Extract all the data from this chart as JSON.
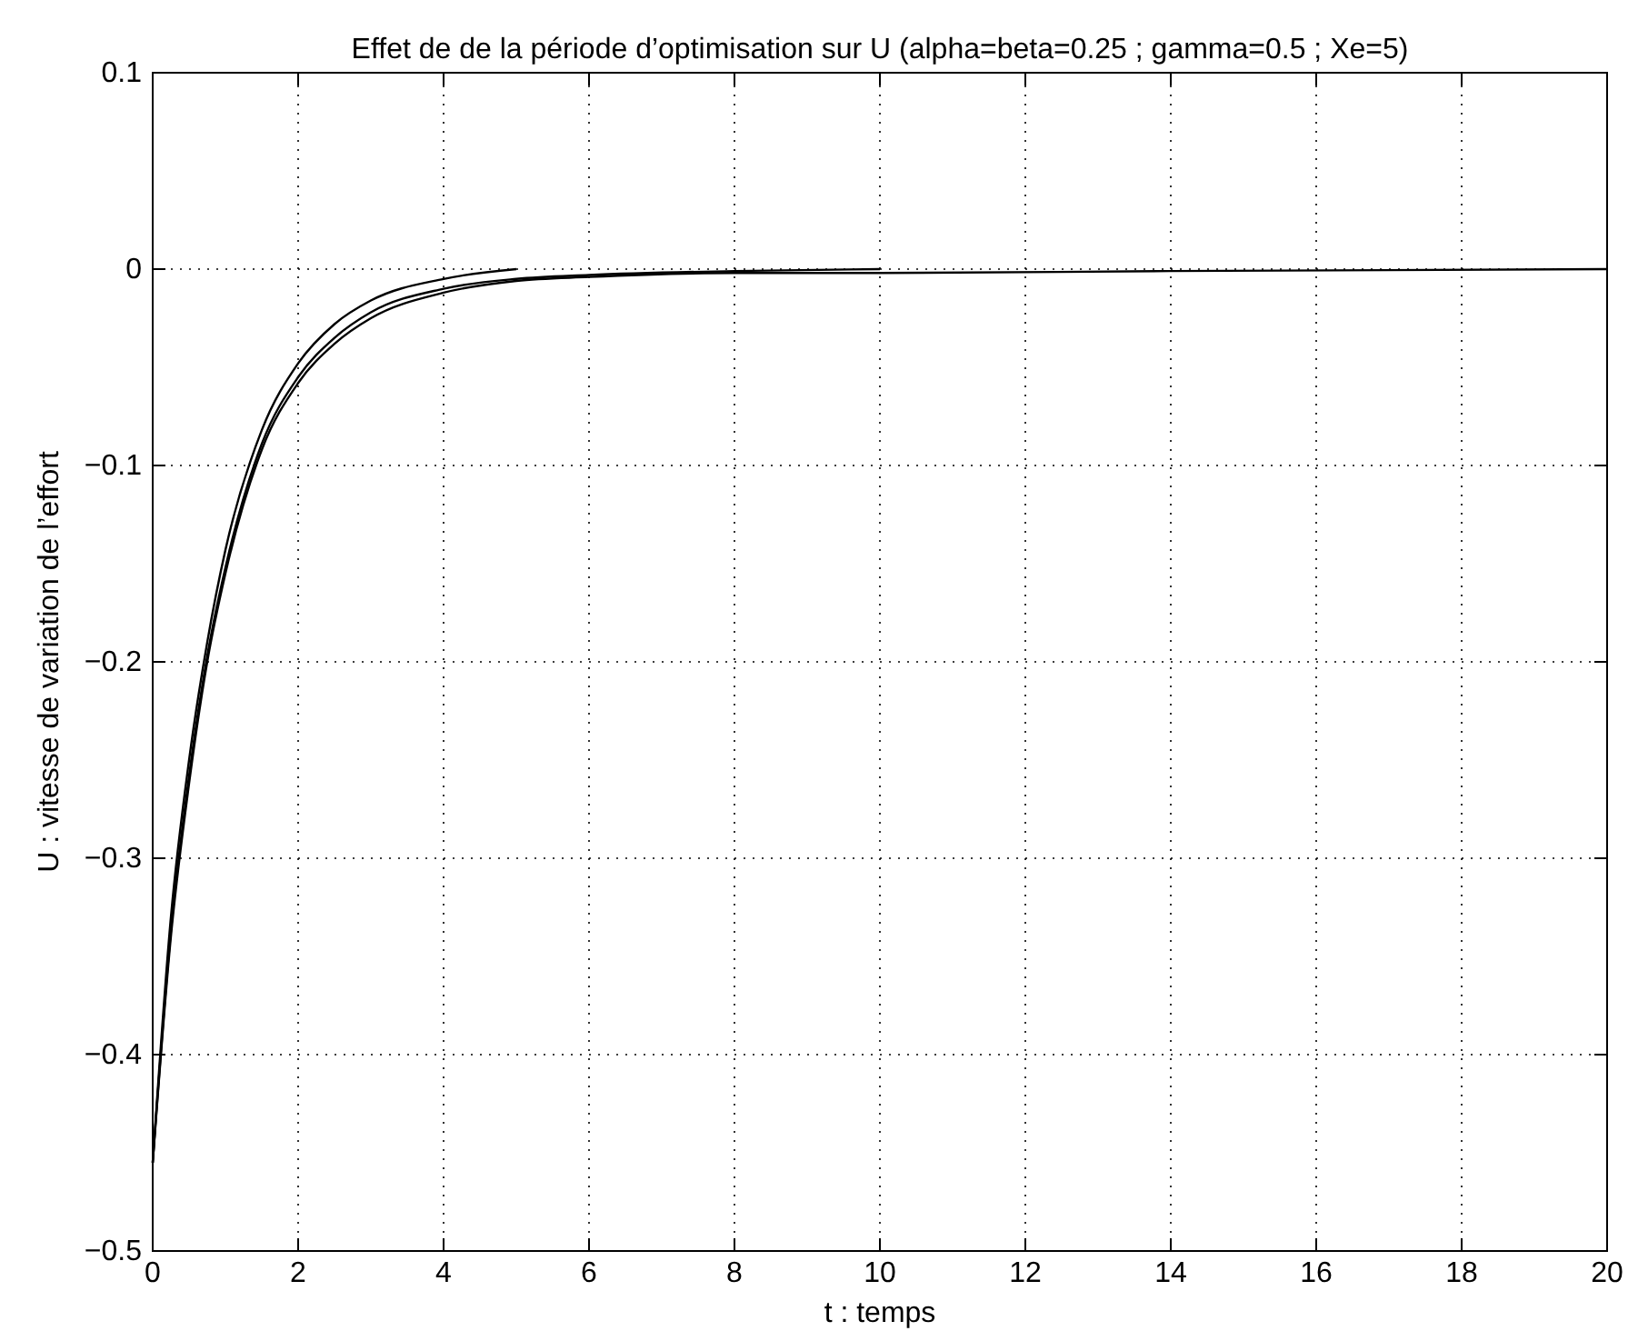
{
  "chart_data": {
    "type": "line",
    "title": "Effet de de la période d’optimisation sur U (alpha=beta=0.25 ; gamma=0.5 ; Xe=5)",
    "xlabel": "t : temps",
    "ylabel": "U : vitesse de variation de l’effort",
    "xlim": [
      0,
      20
    ],
    "ylim": [
      -0.5,
      0.1
    ],
    "xticks": [
      0,
      2,
      4,
      6,
      8,
      10,
      12,
      14,
      16,
      18,
      20
    ],
    "yticks": [
      -0.5,
      -0.4,
      -0.3,
      -0.2,
      -0.1,
      0,
      0.1
    ],
    "grid": true,
    "marker": "none",
    "line_style": "solid",
    "series": [
      {
        "color": "#000000",
        "x": [
          0,
          0.25,
          0.5,
          0.75,
          1,
          1.5,
          2,
          2.5,
          3,
          4,
          5
        ],
        "values": [
          -0.455,
          -0.33,
          -0.25,
          -0.19,
          -0.143,
          -0.082,
          -0.048,
          -0.028,
          -0.016,
          -0.005,
          0
        ]
      },
      {
        "color": "#000000",
        "x": [
          0,
          0.25,
          0.5,
          0.75,
          1,
          1.5,
          2,
          2.5,
          3,
          4,
          5,
          6,
          8,
          10
        ],
        "values": [
          -0.455,
          -0.337,
          -0.258,
          -0.197,
          -0.152,
          -0.089,
          -0.055,
          -0.035,
          -0.022,
          -0.01,
          -0.005,
          -0.003,
          -0.001,
          0
        ]
      },
      {
        "color": "#000000",
        "x": [
          0,
          0.25,
          0.5,
          0.75,
          1,
          1.5,
          2,
          2.5,
          3,
          4,
          5,
          6,
          8,
          10,
          14,
          20
        ],
        "values": [
          -0.455,
          -0.34,
          -0.262,
          -0.2,
          -0.155,
          -0.092,
          -0.058,
          -0.038,
          -0.025,
          -0.012,
          -0.006,
          -0.004,
          -0.002,
          -0.002,
          -0.001,
          0
        ]
      }
    ]
  }
}
